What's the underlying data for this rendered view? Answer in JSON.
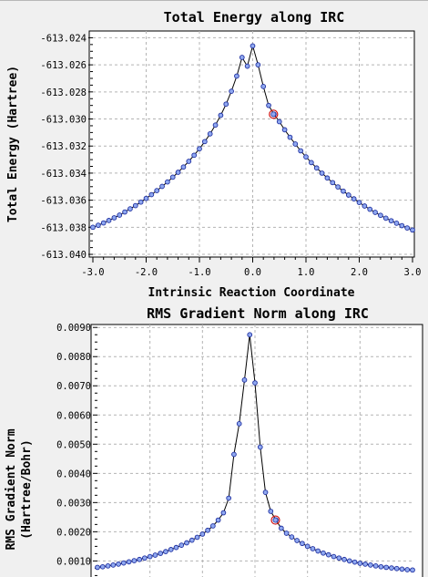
{
  "charts": [
    {
      "title": "Total Energy along IRC",
      "xlabel": "Intrinsic Reaction Coordinate",
      "ylabel": "Total Energy (Hartree)",
      "yticks": [
        "-613.024",
        "-613.026",
        "-613.028",
        "-613.030",
        "-613.032",
        "-613.034",
        "-613.036",
        "-613.038",
        "-613.040"
      ],
      "xticks": [
        "-3.0",
        "-2.0",
        "-1.0",
        "0.0",
        "1.0",
        "2.0",
        "3.0"
      ]
    },
    {
      "title": "RMS Gradient Norm along IRC",
      "ylabel_line1": "RMS Gradient Norm",
      "ylabel_line2": "(Hartree/Bohr)",
      "yticks": [
        "0.0090",
        "0.0080",
        "0.0070",
        "0.0060",
        "0.0050",
        "0.0040",
        "0.0030",
        "0.0020",
        "0.0010"
      ]
    }
  ],
  "chart_data": [
    {
      "type": "line",
      "title": "Total Energy along IRC",
      "xlabel": "Intrinsic Reaction Coordinate",
      "ylabel": "Total Energy (Hartree)",
      "xlim": [
        -3.0,
        3.0
      ],
      "ylim": [
        -613.0402,
        -613.0235
      ],
      "grid": true,
      "selected_x": 0.39,
      "x": [
        -3.0,
        -2.9,
        -2.8,
        -2.7,
        -2.6,
        -2.5,
        -2.4,
        -2.3,
        -2.2,
        -2.1,
        -2.0,
        -1.9,
        -1.8,
        -1.7,
        -1.6,
        -1.5,
        -1.4,
        -1.3,
        -1.2,
        -1.1,
        -1.0,
        -0.9,
        -0.8,
        -0.7,
        -0.6,
        -0.5,
        -0.4,
        -0.3,
        -0.2,
        -0.1,
        0.0,
        0.1,
        0.2,
        0.3,
        0.4,
        0.5,
        0.6,
        0.7,
        0.8,
        0.9,
        1.0,
        1.1,
        1.2,
        1.3,
        1.4,
        1.5,
        1.6,
        1.7,
        1.8,
        1.9,
        2.0,
        2.1,
        2.2,
        2.3,
        2.4,
        2.5,
        2.6,
        2.7,
        2.8,
        2.9,
        3.0
      ],
      "y": [
        -613.038,
        -613.03785,
        -613.03768,
        -613.0375,
        -613.0373,
        -613.0371,
        -613.03687,
        -613.03664,
        -613.0364,
        -613.03614,
        -613.03587,
        -613.03559,
        -613.03529,
        -613.03498,
        -613.03465,
        -613.0343,
        -613.03394,
        -613.03355,
        -613.03313,
        -613.03268,
        -613.0322,
        -613.03167,
        -613.0311,
        -613.03045,
        -613.02973,
        -613.0289,
        -613.02795,
        -613.02683,
        -613.02545,
        -613.0261,
        -613.0246,
        -613.026,
        -613.0276,
        -613.029,
        -613.02965,
        -613.0302,
        -613.0308,
        -613.03135,
        -613.03185,
        -613.03235,
        -613.0328,
        -613.03322,
        -613.03362,
        -613.034,
        -613.03436,
        -613.0347,
        -613.03502,
        -613.03533,
        -613.03562,
        -613.0359,
        -613.03617,
        -613.03643,
        -613.03667,
        -613.0369,
        -613.03712,
        -613.03733,
        -613.03752,
        -613.0377,
        -613.03788,
        -613.03805,
        -613.0382
      ]
    },
    {
      "type": "line",
      "title": "RMS Gradient Norm along IRC",
      "ylabel": "RMS Gradient Norm (Hartree/Bohr)",
      "xlim": [
        -3.0,
        3.0
      ],
      "ylim": [
        0.00045,
        0.0091
      ],
      "grid": true,
      "selected_x": 0.39,
      "x": [
        -3.0,
        -2.9,
        -2.8,
        -2.7,
        -2.6,
        -2.5,
        -2.4,
        -2.3,
        -2.2,
        -2.1,
        -2.0,
        -1.9,
        -1.8,
        -1.7,
        -1.6,
        -1.5,
        -1.4,
        -1.3,
        -1.2,
        -1.1,
        -1.0,
        -0.9,
        -0.8,
        -0.7,
        -0.6,
        -0.5,
        -0.4,
        -0.3,
        -0.2,
        -0.1,
        0.0,
        0.1,
        0.2,
        0.3,
        0.4,
        0.5,
        0.6,
        0.7,
        0.8,
        0.9,
        1.0,
        1.1,
        1.2,
        1.3,
        1.4,
        1.5,
        1.6,
        1.7,
        1.8,
        1.9,
        2.0,
        2.1,
        2.2,
        2.3,
        2.4,
        2.5,
        2.6,
        2.7,
        2.8,
        2.9,
        3.0
      ],
      "y": [
        0.00078,
        0.0008,
        0.00083,
        0.00086,
        0.00089,
        0.00093,
        0.00097,
        0.00101,
        0.00105,
        0.0011,
        0.00115,
        0.0012,
        0.00126,
        0.00132,
        0.00139,
        0.00146,
        0.00154,
        0.00162,
        0.00171,
        0.00181,
        0.00192,
        0.00205,
        0.0022,
        0.0024,
        0.00265,
        0.00315,
        0.00465,
        0.0057,
        0.0072,
        0.00875,
        0.0071,
        0.0049,
        0.00335,
        0.0027,
        0.0024,
        0.00212,
        0.00195,
        0.00182,
        0.0017,
        0.0016,
        0.0015,
        0.00142,
        0.00134,
        0.00127,
        0.00121,
        0.00115,
        0.0011,
        0.00105,
        0.001,
        0.00096,
        0.00092,
        0.00089,
        0.00086,
        0.00083,
        0.0008,
        0.00078,
        0.00076,
        0.00074,
        0.00072,
        0.0007,
        0.00069
      ]
    }
  ]
}
